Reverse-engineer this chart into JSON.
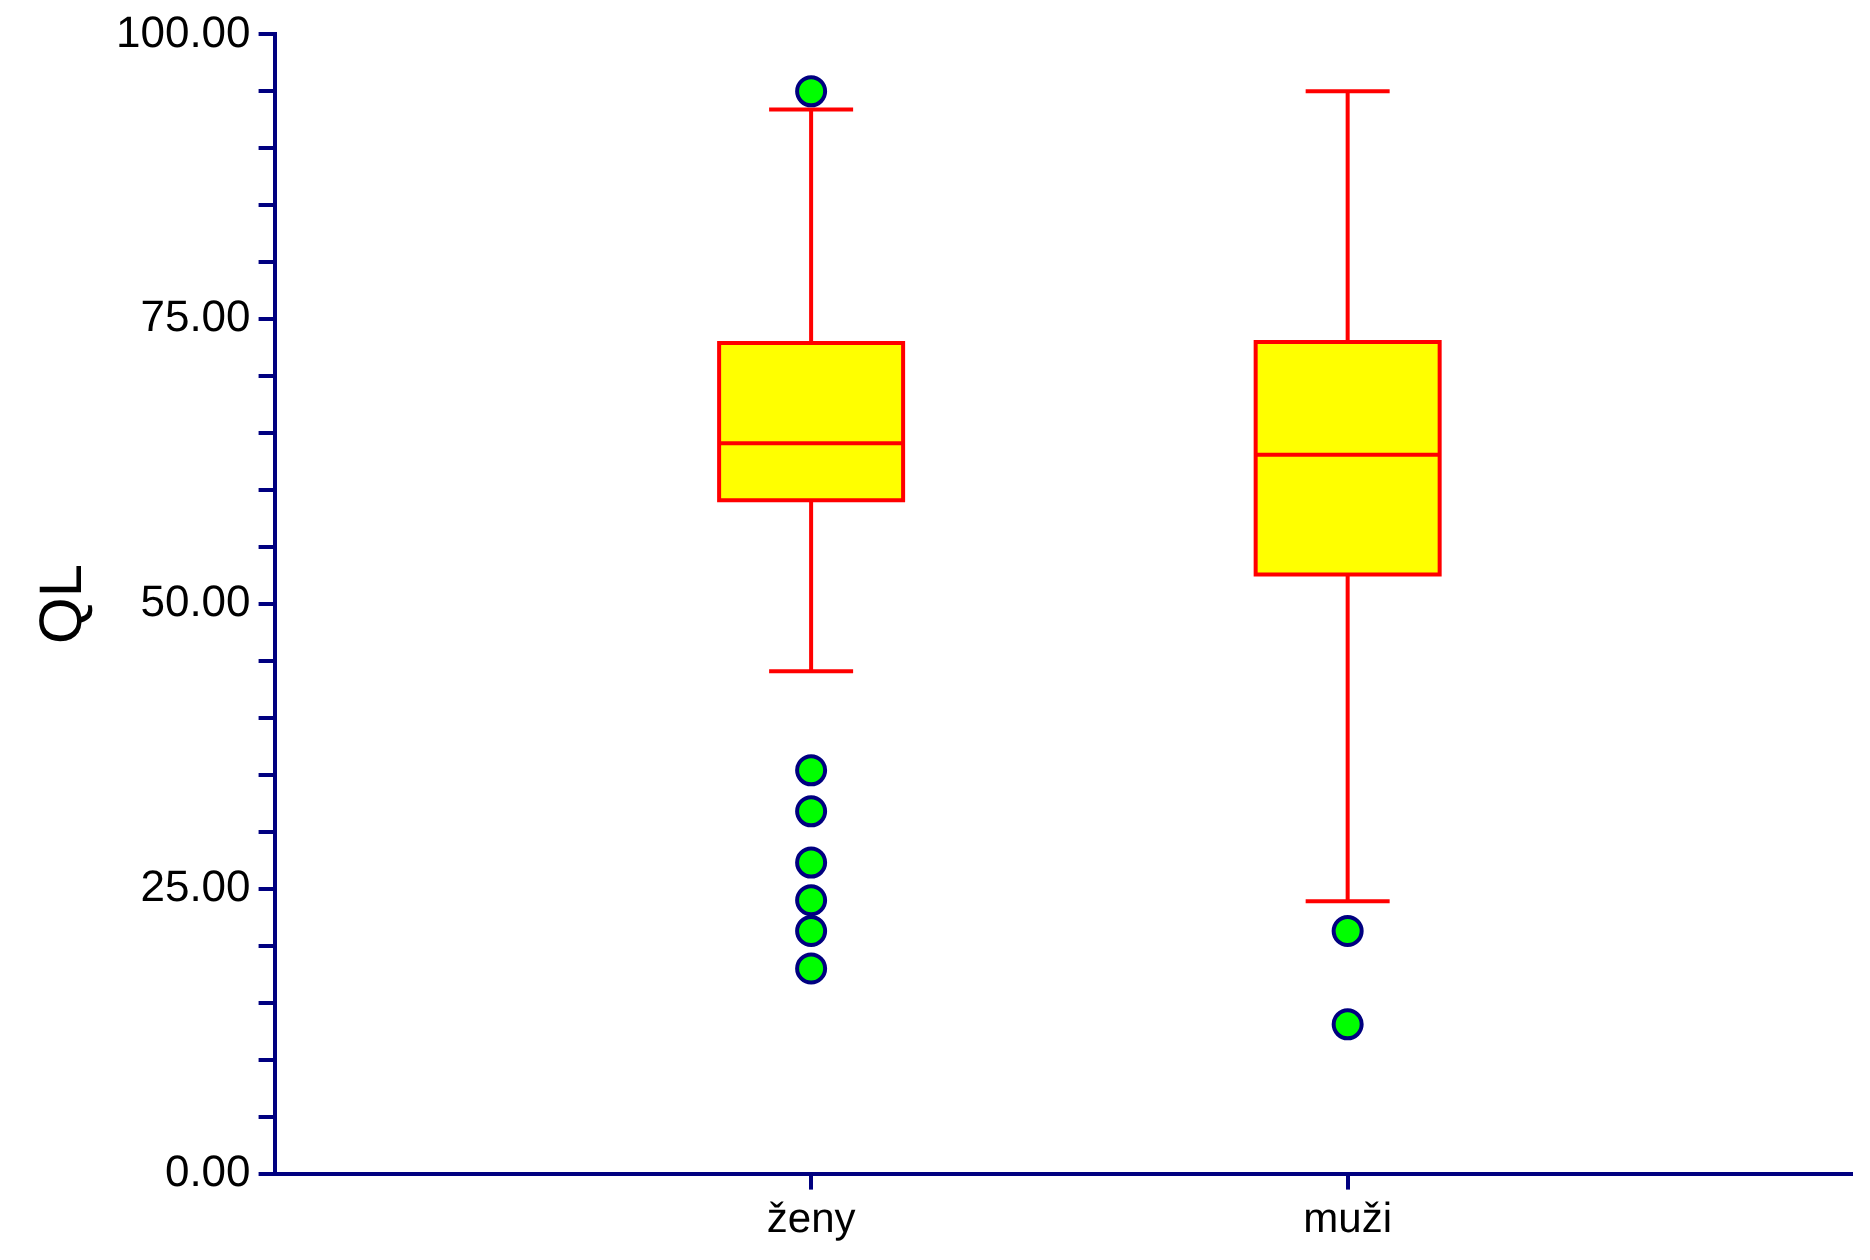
{
  "chart_data": {
    "type": "box",
    "categories": [
      "ženy",
      "muži"
    ],
    "ylabel": "QL",
    "color": "#ffff00",
    "boxes": [
      {
        "low": 44.1,
        "q1": 59.1,
        "median": 64.1,
        "q3": 72.9,
        "high": 93.4,
        "outliers": [
          95.0,
          35.4,
          31.8,
          27.3,
          24.0,
          21.3,
          18.0
        ]
      },
      {
        "low": 23.9,
        "q1": 52.6,
        "median": 63.1,
        "q3": 73.0,
        "high": 95.0,
        "outliers": [
          21.3,
          13.1
        ]
      }
    ],
    "ylim": [
      0,
      100
    ],
    "yticks": [
      {
        "value": 0,
        "label": "0.00"
      },
      {
        "value": 5,
        "label": null
      },
      {
        "value": 10,
        "label": null
      },
      {
        "value": 15,
        "label": null
      },
      {
        "value": 20,
        "label": null
      },
      {
        "value": 25,
        "label": "25.00"
      },
      {
        "value": 30,
        "label": null
      },
      {
        "value": 35,
        "label": null
      },
      {
        "value": 40,
        "label": null
      },
      {
        "value": 45,
        "label": null
      },
      {
        "value": 50,
        "label": "50.00"
      },
      {
        "value": 55,
        "label": null
      },
      {
        "value": 60,
        "label": null
      },
      {
        "value": 65,
        "label": null
      },
      {
        "value": 70,
        "label": null
      },
      {
        "value": 75,
        "label": "75.00"
      },
      {
        "value": 80,
        "label": null
      },
      {
        "value": 85,
        "label": null
      },
      {
        "value": 90,
        "label": null
      },
      {
        "value": 95,
        "label": null
      },
      {
        "value": 100,
        "label": "100.00"
      }
    ],
    "grid": false
  }
}
